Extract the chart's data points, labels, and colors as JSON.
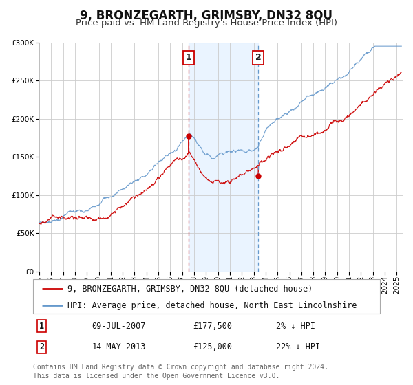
{
  "title": "9, BRONZEGARTH, GRIMSBY, DN32 8QU",
  "subtitle": "Price paid vs. HM Land Registry's House Price Index (HPI)",
  "hpi_label": "HPI: Average price, detached house, North East Lincolnshire",
  "price_label": "9, BRONZEGARTH, GRIMSBY, DN32 8QU (detached house)",
  "sale1_date": "09-JUL-2007",
  "sale1_price": "£177,500",
  "sale1_hpi": "2% ↓ HPI",
  "sale1_year": 2007.52,
  "sale1_value": 177500,
  "sale2_date": "14-MAY-2013",
  "sale2_price": "£125,000",
  "sale2_hpi": "22% ↓ HPI",
  "sale2_year": 2013.37,
  "sale2_value": 125000,
  "ylim": [
    0,
    300000
  ],
  "xlim_start": 1995.0,
  "xlim_end": 2025.5,
  "bg_color": "#ffffff",
  "plot_bg_color": "#ffffff",
  "grid_color": "#cccccc",
  "hpi_line_color": "#6699cc",
  "price_line_color": "#cc0000",
  "highlight_bg_color": "#ddeeff",
  "vline1_color": "#cc0000",
  "vline2_color": "#6699cc",
  "footnote": "Contains HM Land Registry data © Crown copyright and database right 2024.\nThis data is licensed under the Open Government Licence v3.0.",
  "title_fontsize": 12,
  "subtitle_fontsize": 9.5,
  "tick_fontsize": 7.5,
  "legend_fontsize": 8.5,
  "footnote_fontsize": 7
}
